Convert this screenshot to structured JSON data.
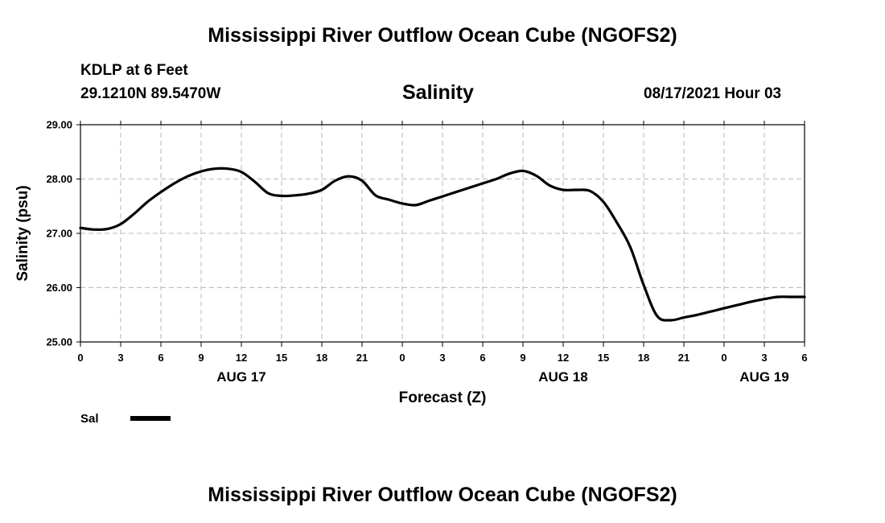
{
  "header": {
    "title": "Mississippi River Outflow Ocean Cube (NGOFS2)",
    "station": "KDLP at 6 Feet",
    "coords": "29.1210N  89.5470W",
    "subtitle": "Salinity",
    "datetime": "08/17/2021 Hour 03"
  },
  "footer": {
    "title": "Mississippi River Outflow Ocean Cube (NGOFS2)"
  },
  "chart_data": {
    "type": "line",
    "title": "Salinity",
    "xlabel": "Forecast (Z)",
    "ylabel": "Salinity (psu)",
    "xlim": [
      0,
      54
    ],
    "ylim": [
      25.0,
      29.0
    ],
    "grid": true,
    "yticks": [
      25.0,
      26.0,
      27.0,
      28.0,
      29.0
    ],
    "ytick_labels": [
      "25.00",
      "26.00",
      "27.00",
      "28.00",
      "29.00"
    ],
    "xtick_labels": [
      "0",
      "3",
      "6",
      "9",
      "12",
      "15",
      "18",
      "21",
      "0",
      "3",
      "6",
      "9",
      "12",
      "15",
      "18",
      "21",
      "0",
      "3",
      "6"
    ],
    "date_labels": [
      {
        "label": "AUG 17",
        "hour": 12
      },
      {
        "label": "AUG 18",
        "hour": 36
      },
      {
        "label": "AUG 19",
        "hour": 51
      }
    ],
    "legend": [
      {
        "name": "Sal",
        "color": "#000000"
      }
    ],
    "series": [
      {
        "name": "Sal",
        "color": "#000000",
        "x": [
          0,
          1,
          2,
          3,
          4,
          5,
          6,
          7,
          8,
          9,
          10,
          11,
          12,
          13,
          14,
          15,
          16,
          17,
          18,
          19,
          20,
          21,
          22,
          23,
          24,
          25,
          26,
          27,
          28,
          29,
          30,
          31,
          32,
          33,
          34,
          35,
          36,
          37,
          38,
          39,
          40,
          41,
          42,
          43,
          44,
          45,
          46,
          47,
          48,
          49,
          50,
          51,
          52,
          53,
          54
        ],
        "y": [
          27.1,
          27.07,
          27.08,
          27.17,
          27.36,
          27.58,
          27.76,
          27.92,
          28.05,
          28.14,
          28.19,
          28.19,
          28.13,
          27.95,
          27.74,
          27.69,
          27.7,
          27.73,
          27.8,
          27.97,
          28.05,
          27.97,
          27.7,
          27.62,
          27.55,
          27.52,
          27.6,
          27.68,
          27.76,
          27.84,
          27.92,
          28.0,
          28.1,
          28.15,
          28.06,
          27.88,
          27.8,
          27.8,
          27.78,
          27.58,
          27.2,
          26.75,
          26.05,
          25.48,
          25.4,
          25.45,
          25.5,
          25.56,
          25.62,
          25.68,
          25.74,
          25.79,
          25.83,
          25.83,
          25.83
        ]
      }
    ]
  }
}
